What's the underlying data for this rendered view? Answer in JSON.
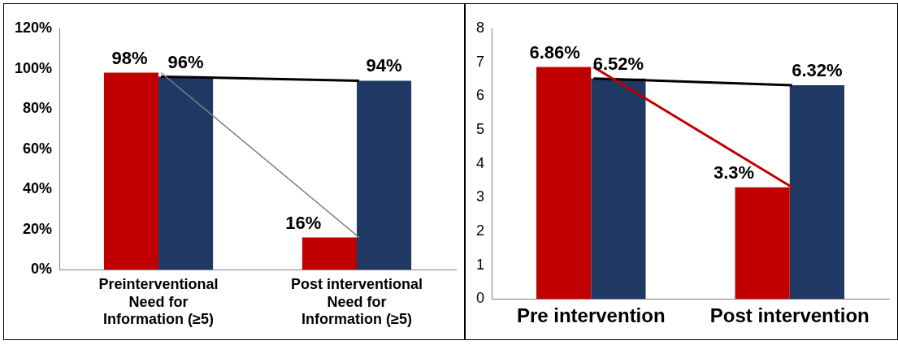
{
  "chart_data": [
    {
      "type": "bar",
      "categories": [
        "Preinterventional Need for Information (≥5)",
        "Post interventional Need for Information (≥5)"
      ],
      "series": [
        {
          "color": "#c00000",
          "values": [
            98,
            16
          ],
          "value_labels": [
            "98%",
            "16%"
          ]
        },
        {
          "color": "#1f3864",
          "values": [
            96,
            94
          ],
          "value_labels": [
            "96%",
            "94%"
          ]
        },
        {
          "type": "line",
          "color": "#7f7f7f",
          "values": [
            98,
            16
          ]
        },
        {
          "type": "line",
          "color": "#000000",
          "values": [
            96,
            94
          ]
        }
      ],
      "ylim": [
        0,
        120
      ],
      "yticks": [
        {
          "value": 0,
          "label": "0%"
        },
        {
          "value": 20,
          "label": "20%"
        },
        {
          "value": 40,
          "label": "40%"
        },
        {
          "value": 60,
          "label": "60%"
        },
        {
          "value": 80,
          "label": "80%"
        },
        {
          "value": 100,
          "label": "100%"
        },
        {
          "value": 120,
          "label": "120%"
        }
      ],
      "grid": false,
      "legend": false
    },
    {
      "type": "bar",
      "categories": [
        "Pre intervention",
        "Post intervention"
      ],
      "series": [
        {
          "color": "#c00000",
          "values": [
            6.86,
            3.3
          ],
          "value_labels": [
            "6.86%",
            "3.3%"
          ]
        },
        {
          "color": "#1f3864",
          "values": [
            6.52,
            6.32
          ],
          "value_labels": [
            "6.52%",
            "6.32%"
          ]
        },
        {
          "type": "line",
          "color": "#c00000",
          "values": [
            6.86,
            3.3
          ]
        },
        {
          "type": "line",
          "color": "#000000",
          "values": [
            6.52,
            6.32
          ]
        }
      ],
      "ylim": [
        0,
        8
      ],
      "yticks": [
        0,
        1,
        2,
        3,
        4,
        5,
        6,
        7,
        8
      ],
      "grid": false,
      "legend": false
    }
  ]
}
